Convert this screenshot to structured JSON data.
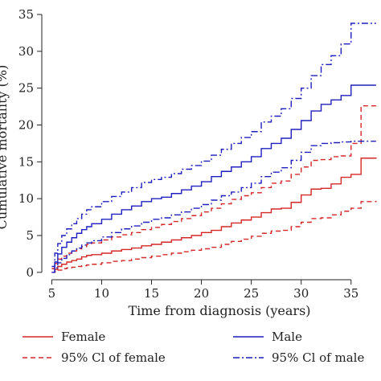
{
  "chart_data": {
    "type": "line",
    "title": "",
    "xlabel": "Time from diagnosis (years)",
    "ylabel": "Cumulative mortality (%)",
    "xlim": [
      4,
      38
    ],
    "ylim": [
      -1,
      35
    ],
    "x_ticks": [
      5,
      10,
      15,
      20,
      25,
      30,
      35
    ],
    "x_tick_labels": [
      "5",
      "10",
      "15",
      "20",
      "25",
      "30",
      "35"
    ],
    "y_ticks": [
      0,
      5,
      10,
      15,
      20,
      25,
      30,
      35
    ],
    "y_tick_labels": [
      "0",
      "5",
      "10",
      "15",
      "20",
      "25",
      "30",
      "35"
    ],
    "grid": false,
    "legend_placement": "bottom",
    "series": [
      {
        "name": "Female",
        "color": "#d62728",
        "dash": "solid",
        "x": [
          5,
          5.3,
          5.6,
          6,
          6.5,
          7,
          7.5,
          8,
          8.5,
          9,
          10,
          11,
          12,
          13,
          14,
          15,
          16,
          17,
          18,
          19,
          20,
          21,
          22,
          23,
          24,
          25,
          26,
          27,
          28,
          29,
          30,
          31,
          32,
          33,
          34,
          35,
          36,
          37.5
        ],
        "y": [
          0,
          0.4,
          0.8,
          1.1,
          1.4,
          1.6,
          1.8,
          2.1,
          2.3,
          2.4,
          2.6,
          2.9,
          3.1,
          3.3,
          3.6,
          3.8,
          4.1,
          4.4,
          4.7,
          5.0,
          5.4,
          5.7,
          6.2,
          6.7,
          7.1,
          7.5,
          8.1,
          8.6,
          8.7,
          9.5,
          10.5,
          11.3,
          11.4,
          12.0,
          12.9,
          13.3,
          15.5,
          15.6
        ]
      },
      {
        "name": "95% Cl of female",
        "color": "#d62728",
        "dash": "dashed",
        "x": [
          5,
          5.3,
          5.6,
          6,
          6.5,
          7,
          7.5,
          8,
          8.5,
          9,
          10,
          11,
          12,
          13,
          14,
          15,
          16,
          17,
          18,
          19,
          20,
          21,
          22,
          23,
          24,
          25,
          26,
          27,
          28,
          29,
          30,
          31,
          32,
          33,
          34,
          35,
          36,
          37.5
        ],
        "y": [
          0.5,
          1.2,
          1.8,
          2.2,
          2.6,
          2.9,
          3.2,
          3.5,
          3.8,
          4.0,
          4.4,
          4.8,
          5.1,
          5.4,
          5.8,
          6.1,
          6.5,
          6.9,
          7.3,
          7.7,
          8.2,
          8.7,
          9.3,
          9.9,
          10.4,
          10.8,
          11.5,
          12.1,
          12.4,
          13.3,
          14.3,
          15.2,
          15.3,
          15.7,
          15.8,
          17.5,
          22.6,
          22.7
        ]
      },
      {
        "name": "95% Cl of female",
        "color": "#d62728",
        "dash": "dashed",
        "x": [
          5,
          5.3,
          5.6,
          6,
          6.5,
          7,
          7.5,
          8,
          8.5,
          9,
          10,
          11,
          12,
          13,
          14,
          15,
          16,
          17,
          18,
          19,
          20,
          21,
          22,
          23,
          24,
          25,
          26,
          27,
          28,
          29,
          30,
          31,
          32,
          33,
          34,
          35,
          36,
          37.5
        ],
        "y": [
          0,
          0.1,
          0.3,
          0.5,
          0.6,
          0.7,
          0.8,
          0.9,
          1.0,
          1.1,
          1.3,
          1.5,
          1.6,
          1.8,
          2.0,
          2.2,
          2.4,
          2.6,
          2.8,
          3.0,
          3.2,
          3.4,
          3.8,
          4.2,
          4.5,
          4.9,
          5.3,
          5.6,
          5.7,
          6.2,
          6.8,
          7.3,
          7.4,
          7.8,
          8.3,
          8.7,
          9.6,
          9.7
        ]
      },
      {
        "name": "Male",
        "color": "#1f1fbf",
        "dash": "solid",
        "x": [
          5,
          5.3,
          5.6,
          6,
          6.5,
          7,
          7.5,
          8,
          8.5,
          9,
          10,
          11,
          12,
          13,
          14,
          15,
          16,
          17,
          18,
          19,
          20,
          21,
          22,
          23,
          24,
          25,
          26,
          27,
          28,
          29,
          30,
          31,
          32,
          33,
          34,
          35,
          36,
          37.5
        ],
        "y": [
          0,
          1.4,
          2.5,
          3.4,
          4.1,
          4.7,
          5.3,
          5.8,
          6.2,
          6.6,
          7.2,
          7.9,
          8.5,
          9.0,
          9.6,
          10.0,
          10.2,
          10.7,
          11.2,
          11.7,
          12.3,
          13.0,
          13.7,
          14.3,
          15.0,
          15.7,
          16.8,
          17.5,
          18.2,
          19.4,
          20.6,
          21.9,
          22.8,
          23.4,
          24.0,
          25.4,
          25.4,
          25.4
        ]
      },
      {
        "name": "95% Cl of male",
        "color": "#1f1fbf",
        "dash": "dashdot",
        "x": [
          5,
          5.3,
          5.6,
          6,
          6.5,
          7,
          7.5,
          8,
          8.5,
          9,
          10,
          11,
          12,
          13,
          14,
          15,
          16,
          17,
          18,
          19,
          20,
          21,
          22,
          23,
          24,
          25,
          26,
          27,
          28,
          29,
          30,
          31,
          32,
          33,
          34,
          35,
          36,
          37.5
        ],
        "y": [
          0.8,
          2.6,
          3.9,
          5.0,
          5.9,
          6.6,
          7.3,
          7.9,
          8.5,
          8.9,
          9.6,
          10.3,
          10.9,
          11.5,
          12.2,
          12.6,
          12.9,
          13.4,
          14.0,
          14.5,
          15.1,
          15.9,
          16.7,
          17.5,
          18.3,
          19.1,
          20.4,
          21.2,
          22.2,
          23.6,
          25.0,
          26.7,
          28.2,
          29.4,
          31.0,
          33.8,
          33.8,
          33.8
        ]
      },
      {
        "name": "95% Cl of male",
        "color": "#1f1fbf",
        "dash": "dashdot",
        "x": [
          5,
          5.3,
          5.6,
          6,
          6.5,
          7,
          7.5,
          8,
          8.5,
          9,
          10,
          11,
          12,
          13,
          14,
          15,
          16,
          17,
          18,
          19,
          20,
          21,
          22,
          23,
          24,
          25,
          26,
          27,
          28,
          29,
          30,
          31,
          32,
          33,
          34,
          35,
          36,
          37.5
        ],
        "y": [
          0,
          0.6,
          1.3,
          1.9,
          2.4,
          2.9,
          3.3,
          3.7,
          4.0,
          4.3,
          4.8,
          5.4,
          5.9,
          6.3,
          6.8,
          7.2,
          7.4,
          7.8,
          8.2,
          8.7,
          9.2,
          9.8,
          10.4,
          10.9,
          11.5,
          12.1,
          13.0,
          13.6,
          14.2,
          15.2,
          16.3,
          17.2,
          17.5,
          17.6,
          17.7,
          17.8,
          17.8,
          17.8
        ]
      }
    ],
    "legend": [
      {
        "label": "Female",
        "color": "#d62728",
        "dash": "solid"
      },
      {
        "label": "95% Cl of female",
        "color": "#d62728",
        "dash": "dashed"
      },
      {
        "label": "Male",
        "color": "#1f1fbf",
        "dash": "solid"
      },
      {
        "label": "95% Cl of male",
        "color": "#1f1fbf",
        "dash": "dashdot"
      }
    ]
  }
}
